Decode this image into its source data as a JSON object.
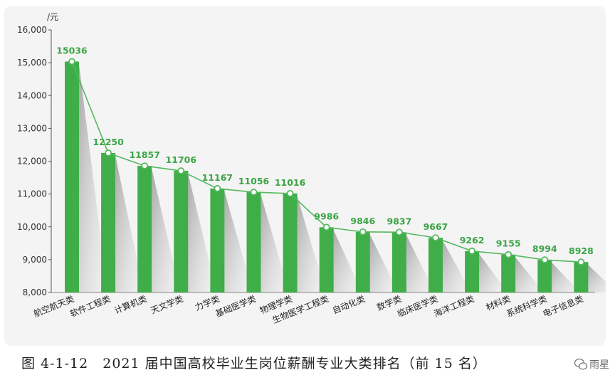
{
  "chart_data": {
    "type": "bar",
    "unit": "/元",
    "ylim": [
      8000,
      16000
    ],
    "yticks": [
      "8,000",
      "9,000",
      "10,000",
      "11,000",
      "12,000",
      "13,000",
      "14,000",
      "15,000",
      "16,000"
    ],
    "categories": [
      "航空航天类",
      "软件工程类",
      "计算机类",
      "天文学类",
      "力学类",
      "基础医学类",
      "物理学类",
      "生物医学工程类",
      "自动化类",
      "数学类",
      "临床医学类",
      "海洋工程类",
      "材料类",
      "系统科学类",
      "电子信息类"
    ],
    "values": [
      15036,
      12250,
      11857,
      11706,
      11167,
      11056,
      11016,
      9986,
      9846,
      9837,
      9667,
      9262,
      9155,
      8994,
      8928
    ],
    "line_overlay": true,
    "data_labels": true,
    "colors": {
      "bar": "#3fae49",
      "line": "#55b95e",
      "label": "#3aa545"
    }
  },
  "caption": "图 4-1-12　2021 届中国高校毕业生岗位薪酬专业大类排名（前 15 名）",
  "watermark": {
    "text": "雨星",
    "icon": "wechat-icon"
  }
}
